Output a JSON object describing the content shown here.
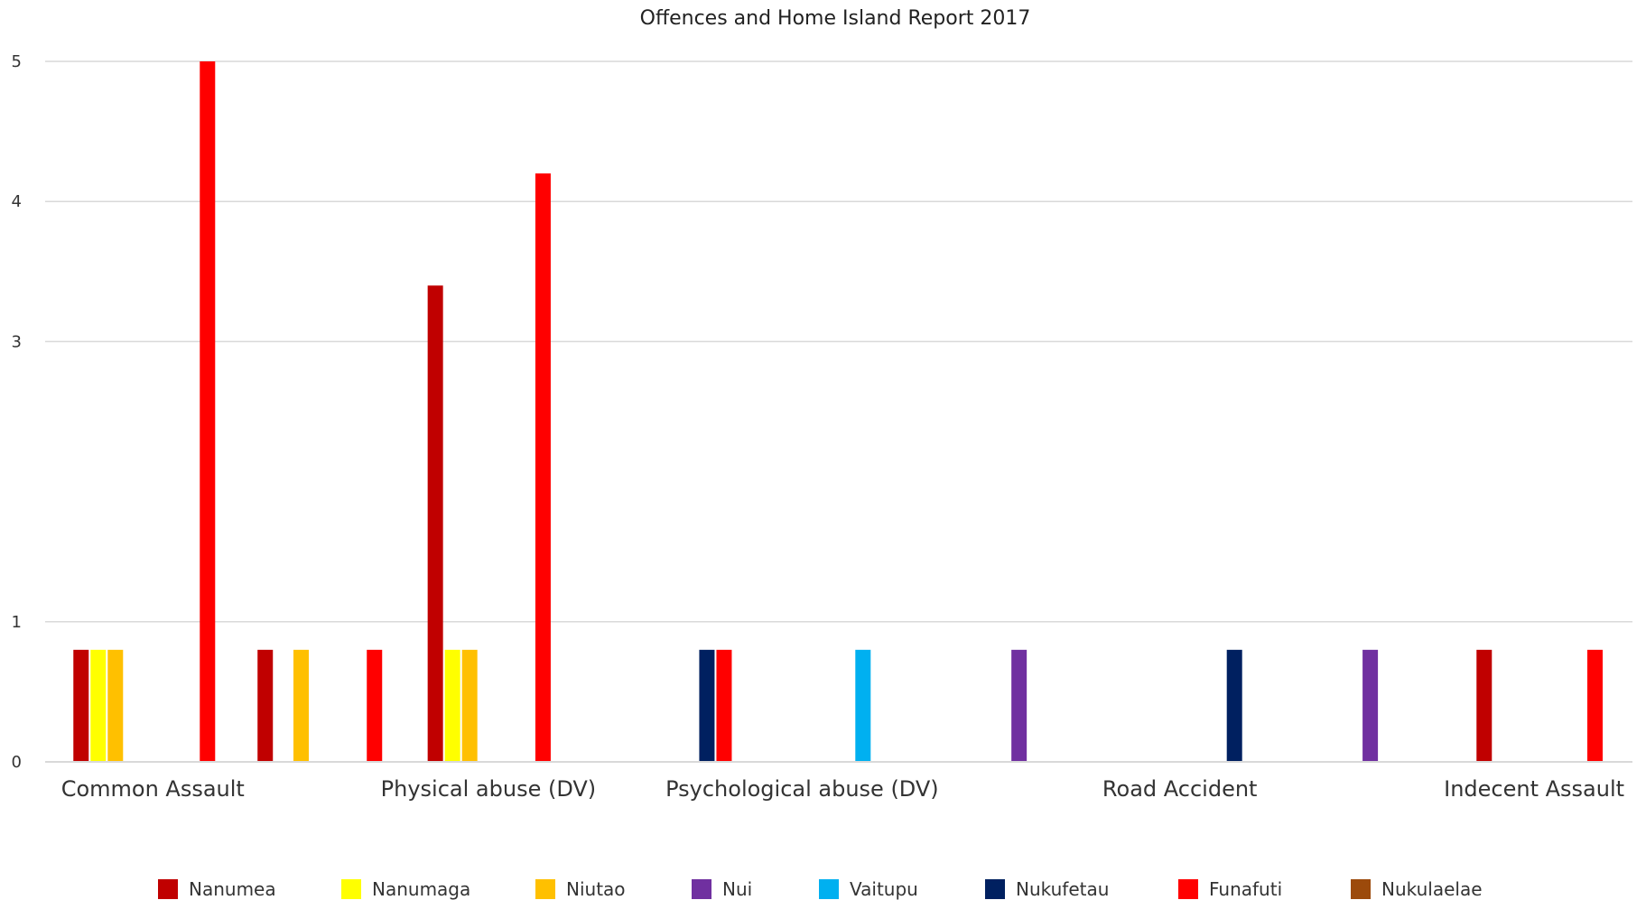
{
  "chart_data": {
    "type": "bar",
    "title": "Offences and Home Island Report 2017",
    "categories": [
      "Common Assault",
      "Physical abuse (DV)",
      "Psychological abuse (DV)",
      "Road Accident",
      "Indecent Assault"
    ],
    "ylim": [
      0,
      5
    ],
    "yticks": [
      0,
      1,
      3,
      4,
      5
    ],
    "grid": true,
    "legend_position": "bottom",
    "bars": [
      {
        "series": "Nanumea",
        "color": "#C00000",
        "x": 0.06,
        "value": 0.8
      },
      {
        "series": "Nanumaga",
        "color": "#FFFF00",
        "x": 0.17,
        "value": 0.8
      },
      {
        "series": "Niutao",
        "color": "#FFC000",
        "x": 0.28,
        "value": 0.8
      },
      {
        "series": "Funafuti",
        "color": "#FF0000",
        "x": 0.87,
        "value": 5
      },
      {
        "series": "Nanumea",
        "color": "#C00000",
        "x": 1.24,
        "value": 0.8
      },
      {
        "series": "Niutao",
        "color": "#FFC000",
        "x": 1.47,
        "value": 0.8
      },
      {
        "series": "Funafuti",
        "color": "#FF0000",
        "x": 1.94,
        "value": 0.8
      },
      {
        "series": "Nanumea",
        "color": "#C00000",
        "x": 2.33,
        "value": 3.4
      },
      {
        "series": "Nanumaga",
        "color": "#FFFF00",
        "x": 2.44,
        "value": 0.8
      },
      {
        "series": "Niutao",
        "color": "#FFC000",
        "x": 2.55,
        "value": 0.8
      },
      {
        "series": "Funafuti",
        "color": "#FF0000",
        "x": 3.02,
        "value": 4.2
      },
      {
        "series": "Nukufetau",
        "color": "#002060",
        "x": 4.07,
        "value": 0.8
      },
      {
        "series": "Funafuti",
        "color": "#FF0000",
        "x": 4.18,
        "value": 0.8
      },
      {
        "series": "Vaitupu",
        "color": "#00B0F0",
        "x": 5.07,
        "value": 0.8
      },
      {
        "series": "Nui",
        "color": "#7030A0",
        "x": 6.07,
        "value": 0.8
      },
      {
        "series": "Nukufetau",
        "color": "#002060",
        "x": 7.45,
        "value": 0.8
      },
      {
        "series": "Nui",
        "color": "#7030A0",
        "x": 8.32,
        "value": 0.8
      },
      {
        "series": "Nanumea",
        "color": "#C00000",
        "x": 9.05,
        "value": 0.8
      },
      {
        "series": "Funafuti",
        "color": "#FF0000",
        "x": 9.76,
        "value": 0.8
      }
    ],
    "category_positions": [
      0.52,
      2.67,
      4.68,
      7.1,
      9.37
    ],
    "x_range": [
      -0.17,
      10
    ],
    "series": [
      {
        "name": "Nanumea",
        "color": "#C00000"
      },
      {
        "name": "Nanumaga",
        "color": "#FFFF00"
      },
      {
        "name": "Niutao",
        "color": "#FFC000"
      },
      {
        "name": "Nui",
        "color": "#7030A0"
      },
      {
        "name": "Vaitupu",
        "color": "#00B0F0"
      },
      {
        "name": "Nukufetau",
        "color": "#002060"
      },
      {
        "name": "Funafuti",
        "color": "#FF0000"
      },
      {
        "name": "Nukulaelae",
        "color": "#9C4A0B"
      }
    ]
  }
}
